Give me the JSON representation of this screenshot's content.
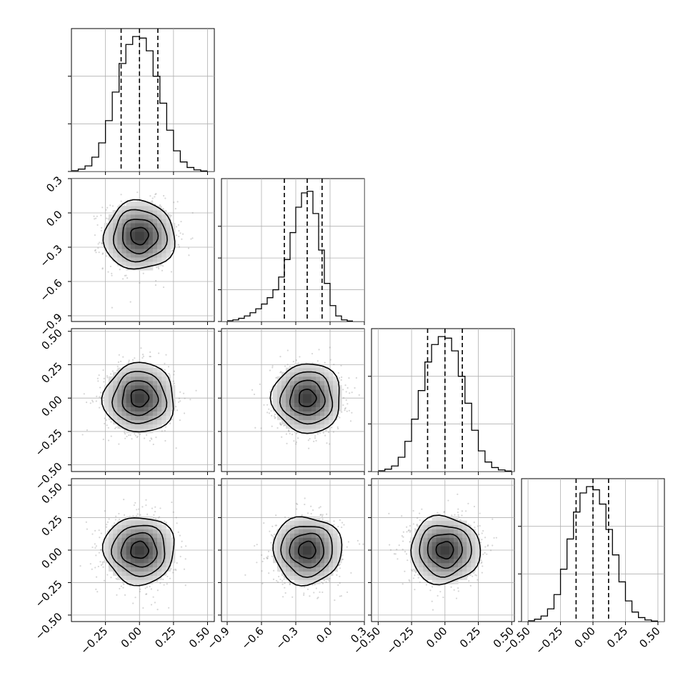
{
  "colors": {
    "histogram": "#000000",
    "grid": "#b0b0b0",
    "density": "#000000",
    "points": "#8a8a8a"
  },
  "chart_data": {
    "type": "corner",
    "grid": true,
    "parameters": [
      {
        "label": "",
        "lim": [
          -0.5,
          0.55
        ],
        "ticks": [
          "−0.25",
          "0.00",
          "0.25",
          "0.50"
        ],
        "tick_values": [
          -0.25,
          0,
          0.25,
          0.5
        ],
        "mean": 0.0,
        "std": 0.13,
        "quantiles": [
          -0.135,
          0.0,
          0.135
        ]
      },
      {
        "label": "",
        "lim": [
          -0.95,
          0.3
        ],
        "ticks": [
          "−0.9",
          "−0.6",
          "−0.3",
          "0.0",
          "0.3"
        ],
        "tick_values": [
          -0.9,
          -0.6,
          -0.3,
          0,
          0.3
        ],
        "mean": -0.2,
        "std": 0.15,
        "quantiles": [
          -0.4,
          -0.2,
          -0.07
        ]
      },
      {
        "label": "",
        "lim": [
          -0.55,
          0.52
        ],
        "ticks": [
          "−0.50",
          "−0.25",
          "0.00",
          "0.25",
          "0.50"
        ],
        "tick_values": [
          -0.5,
          -0.25,
          0,
          0.25,
          0.5
        ],
        "mean": 0.0,
        "std": 0.13,
        "quantiles": [
          -0.13,
          0.0,
          0.13
        ]
      },
      {
        "label": "",
        "lim": [
          -0.55,
          0.55
        ],
        "ticks": [
          "−0.50",
          "−0.25",
          "0.00",
          "0.25",
          "0.50"
        ],
        "tick_values": [
          -0.5,
          -0.25,
          0,
          0.25,
          0.5
        ],
        "mean": 0.0,
        "std": 0.13,
        "quantiles": [
          -0.13,
          0.0,
          0.12
        ]
      }
    ],
    "histograms": [
      {
        "param": 0,
        "ylim": [
          0,
          900
        ],
        "yticks": [
          0,
          300,
          600
        ],
        "bin_edges": [
          -0.5,
          -0.45,
          -0.4,
          -0.35,
          -0.3,
          -0.25,
          -0.2,
          -0.15,
          -0.1,
          -0.05,
          0,
          0.05,
          0.1,
          0.15,
          0.2,
          0.25,
          0.3,
          0.35,
          0.4,
          0.45,
          0.5
        ],
        "counts": [
          5,
          15,
          35,
          90,
          180,
          320,
          500,
          680,
          800,
          850,
          840,
          760,
          600,
          430,
          260,
          130,
          60,
          25,
          10,
          3
        ]
      },
      {
        "param": 1,
        "ylim": [
          0,
          900
        ],
        "yticks": [
          0,
          200,
          400,
          600
        ],
        "bin_edges": [
          -0.9,
          -0.85,
          -0.8,
          -0.75,
          -0.7,
          -0.65,
          -0.6,
          -0.55,
          -0.5,
          -0.45,
          -0.4,
          -0.35,
          -0.3,
          -0.25,
          -0.2,
          -0.15,
          -0.1,
          -0.05,
          0,
          0.05,
          0.1,
          0.15,
          0.2
        ],
        "counts": [
          5,
          10,
          20,
          35,
          55,
          80,
          110,
          150,
          200,
          280,
          390,
          560,
          720,
          810,
          820,
          680,
          450,
          240,
          100,
          35,
          10,
          3
        ]
      },
      {
        "param": 2,
        "ylim": [
          0,
          900
        ],
        "yticks": [
          0,
          300,
          600
        ],
        "bin_edges": [
          -0.5,
          -0.45,
          -0.4,
          -0.35,
          -0.3,
          -0.25,
          -0.2,
          -0.15,
          -0.1,
          -0.05,
          0,
          0.05,
          0.1,
          0.15,
          0.2,
          0.25,
          0.3,
          0.35,
          0.4,
          0.45,
          0.5
        ],
        "counts": [
          5,
          15,
          35,
          90,
          190,
          330,
          510,
          690,
          800,
          850,
          840,
          760,
          600,
          430,
          260,
          130,
          60,
          25,
          10,
          3
        ]
      },
      {
        "param": 3,
        "ylim": [
          0,
          900
        ],
        "yticks": [
          0,
          300,
          600
        ],
        "bin_edges": [
          -0.5,
          -0.45,
          -0.4,
          -0.35,
          -0.3,
          -0.25,
          -0.2,
          -0.15,
          -0.1,
          -0.05,
          0,
          0.05,
          0.1,
          0.15,
          0.2,
          0.25,
          0.3,
          0.35,
          0.4,
          0.45,
          0.5
        ],
        "counts": [
          5,
          15,
          35,
          80,
          170,
          330,
          520,
          690,
          810,
          850,
          830,
          740,
          580,
          420,
          250,
          130,
          60,
          25,
          10,
          3
        ]
      }
    ],
    "joint_panels": [
      {
        "x_param": 0,
        "y_param": 1,
        "center": [
          0.0,
          -0.2
        ],
        "sigma": [
          0.13,
          0.15
        ],
        "contour_levels": [
          0.5,
          1.0,
          1.5,
          2.0
        ]
      },
      {
        "x_param": 0,
        "y_param": 2,
        "center": [
          0.0,
          0.0
        ],
        "sigma": [
          0.13,
          0.13
        ],
        "contour_levels": [
          0.5,
          1.0,
          1.5,
          2.0
        ]
      },
      {
        "x_param": 1,
        "y_param": 2,
        "center": [
          -0.2,
          0.0
        ],
        "sigma": [
          0.15,
          0.13
        ],
        "contour_levels": [
          0.5,
          1.0,
          1.5,
          2.0
        ]
      },
      {
        "x_param": 0,
        "y_param": 3,
        "center": [
          0.0,
          0.0
        ],
        "sigma": [
          0.13,
          0.13
        ],
        "contour_levels": [
          0.5,
          1.0,
          1.5,
          2.0
        ]
      },
      {
        "x_param": 1,
        "y_param": 3,
        "center": [
          -0.2,
          0.0
        ],
        "sigma": [
          0.15,
          0.13
        ],
        "contour_levels": [
          0.5,
          1.0,
          1.5,
          2.0
        ]
      },
      {
        "x_param": 2,
        "y_param": 3,
        "center": [
          0.0,
          0.0
        ],
        "sigma": [
          0.13,
          0.13
        ],
        "contour_levels": [
          0.5,
          1.0,
          1.5,
          2.0
        ]
      }
    ]
  }
}
